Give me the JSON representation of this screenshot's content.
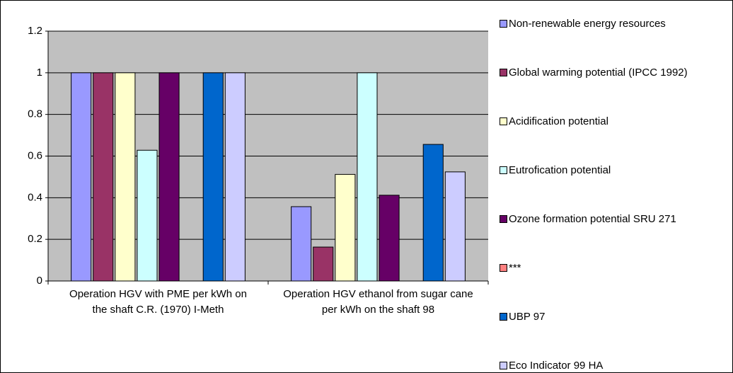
{
  "chart_data": {
    "type": "bar",
    "categories": [
      "Operation HGV with PME per kWh on the shaft C.R. (1970) I-Meth",
      "Operation HGV ethanol from sugar cane per kWh on the shaft 98"
    ],
    "series": [
      {
        "name": "Non-renewable energy resources",
        "color": "#9999ff",
        "values": [
          1,
          0.357
        ]
      },
      {
        "name": "Global warming potential (IPCC 1992)",
        "color": "#993366",
        "values": [
          1,
          0.163
        ]
      },
      {
        "name": "Acidification potential",
        "color": "#ffffcc",
        "values": [
          1,
          0.512
        ]
      },
      {
        "name": "Eutrofication potential",
        "color": "#ccffff",
        "values": [
          0.628,
          1
        ]
      },
      {
        "name": "Ozone formation potential SRU 271",
        "color": "#660066",
        "values": [
          1,
          0.412
        ]
      },
      {
        "name": "***",
        "color": "#ff8080",
        "values": [
          null,
          null
        ]
      },
      {
        "name": "UBP 97",
        "color": "#0066cc",
        "values": [
          1,
          0.656
        ]
      },
      {
        "name": "Eco Indicator 99  HA",
        "color": "#ccccff",
        "values": [
          1,
          0.524
        ]
      }
    ],
    "ylim": [
      0,
      1.2
    ],
    "yticks": [
      0,
      0.2,
      0.4,
      0.6,
      0.8,
      1,
      1.2
    ],
    "grid": true,
    "plot_background": "#c0c0c0"
  }
}
